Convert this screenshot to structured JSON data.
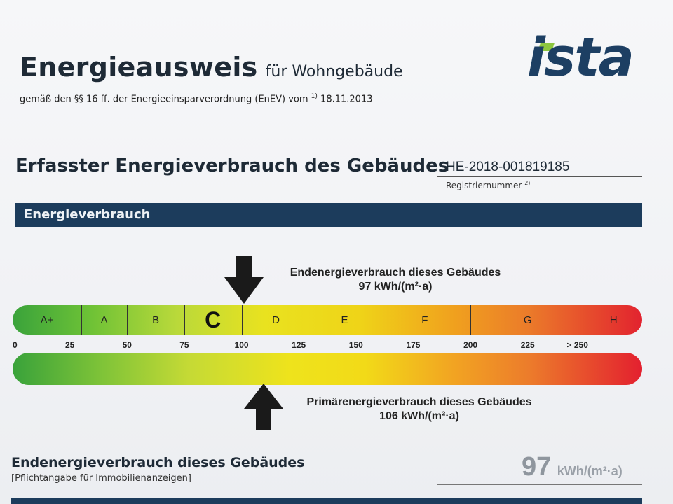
{
  "header": {
    "title": "Energieausweis",
    "title_suffix": "für Wohngebäude",
    "subtitle_prefix": "gemäß den §§ 16 ff. der Energieeinsparverordnung (EnEV) vom",
    "subtitle_sup": "1)",
    "subtitle_date": "18.11.2013",
    "logo_text": "ista"
  },
  "section": {
    "heading": "Erfasster Energieverbrauch des Gebäudes",
    "registration_number": "HE-2018-001819185",
    "registration_label": "Registriernummer",
    "registration_sup": "2)"
  },
  "band": {
    "title": "Energieverbrauch"
  },
  "scale": {
    "end_energy_label": "Endenergieverbrauch dieses Gebäudes",
    "end_energy_value": "97 kWh/(m²·a)",
    "end_energy_marker": 97,
    "primary_energy_label": "Primärenergieverbrauch dieses Gebäudes",
    "primary_energy_value": "106 kWh/(m²·a)",
    "primary_energy_marker": 106,
    "classes": [
      {
        "label": "A+",
        "from": 0,
        "to": 30
      },
      {
        "label": "A",
        "from": 30,
        "to": 50
      },
      {
        "label": "B",
        "from": 50,
        "to": 75
      },
      {
        "label": "C",
        "from": 75,
        "to": 100,
        "active": true
      },
      {
        "label": "D",
        "from": 100,
        "to": 130
      },
      {
        "label": "E",
        "from": 130,
        "to": 160
      },
      {
        "label": "F",
        "from": 160,
        "to": 200
      },
      {
        "label": "G",
        "from": 200,
        "to": 250
      },
      {
        "label": "H",
        "from": 250,
        "to": 275
      }
    ],
    "ticks": [
      "0",
      "25",
      "50",
      "75",
      "100",
      "125",
      "150",
      "175",
      "200",
      "225",
      "> 250"
    ],
    "tick_values": [
      0,
      25,
      50,
      75,
      100,
      125,
      150,
      175,
      200,
      225,
      250
    ]
  },
  "footer": {
    "heading": "Endenergieverbrauch dieses Gebäudes",
    "note": "[Pflichtangabe für Immobilienanzeigen]",
    "value": "97",
    "unit": "kWh/(m²·a)"
  },
  "colors": {
    "navy": "#1c3c5c",
    "logo_blue": "#1d3f63",
    "logo_green": "#8cc63e"
  }
}
